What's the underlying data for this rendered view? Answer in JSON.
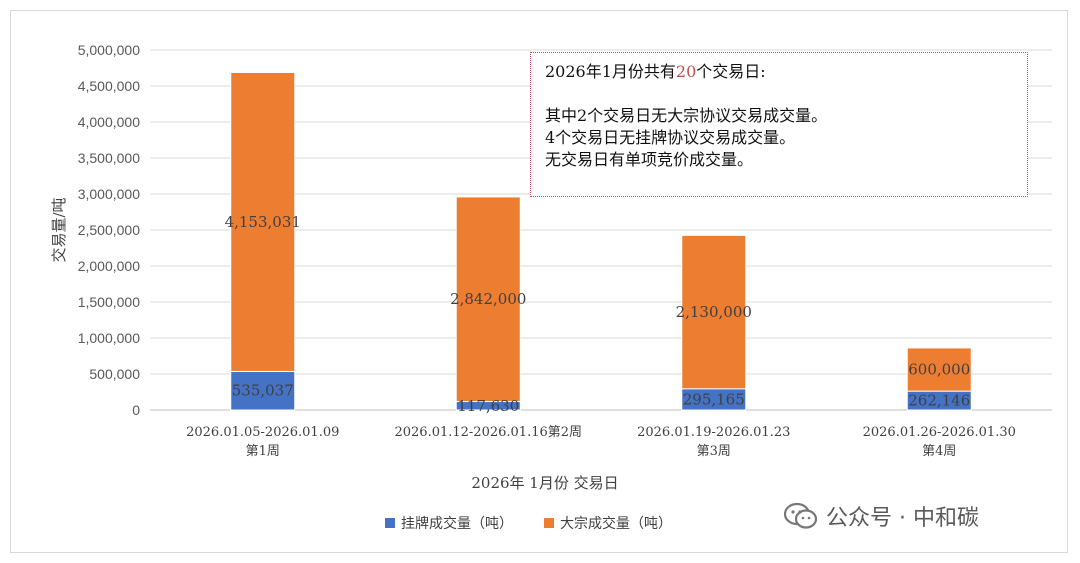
{
  "chart_data": {
    "type": "bar",
    "stacked": true,
    "categories": [
      [
        "2026.01.05-2026.01.09",
        "第1周"
      ],
      [
        "2026.01.12-2026.01.16第2周"
      ],
      [
        "2026.01.19-2026.01.23",
        "第3周"
      ],
      [
        "2026.01.26-2026.01.30",
        "第4周"
      ]
    ],
    "series": [
      {
        "name": "挂牌成交量（吨）",
        "values": [
          535037,
          117630,
          295165,
          262146
        ],
        "labels": [
          "535,037",
          "117,630",
          "295,165",
          "262,146"
        ],
        "color": "#4472c4"
      },
      {
        "name": "大宗成交量（吨）",
        "values": [
          4153031,
          2842000,
          2130000,
          600000
        ],
        "labels": [
          "4,153,031",
          "2,842,000",
          "2,130,000",
          "600,000"
        ],
        "color": "#ed7d31"
      }
    ],
    "xlabel": "2026年 1月份 交易日",
    "ylabel": "交易量/吨",
    "ylim": [
      0,
      5000000
    ],
    "yticks": [
      0,
      500000,
      1000000,
      1500000,
      2000000,
      2500000,
      3000000,
      3500000,
      4000000,
      4500000,
      5000000
    ],
    "ytick_labels": [
      "0",
      "500,000",
      "1,000,000",
      "1,500,000",
      "2,000,000",
      "2,500,000",
      "3,000,000",
      "3,500,000",
      "4,000,000",
      "4,500,000",
      "5,000,000"
    ],
    "grid": true,
    "legend_position": "bottom"
  },
  "annotation": {
    "line1_prefix": "2026年1月份共有",
    "line1_highlight": "20",
    "line1_suffix": "个交易日:",
    "line2": "其中2个交易日无大宗协议交易成交量。",
    "line3": "4个交易日无挂牌协议交易成交量。",
    "line4": "无交易日有单项竞价成交量。",
    "highlight_color": "#c0504d"
  },
  "watermark": {
    "text": "公众号 · 中和碳",
    "icon": "wechat-icon"
  }
}
